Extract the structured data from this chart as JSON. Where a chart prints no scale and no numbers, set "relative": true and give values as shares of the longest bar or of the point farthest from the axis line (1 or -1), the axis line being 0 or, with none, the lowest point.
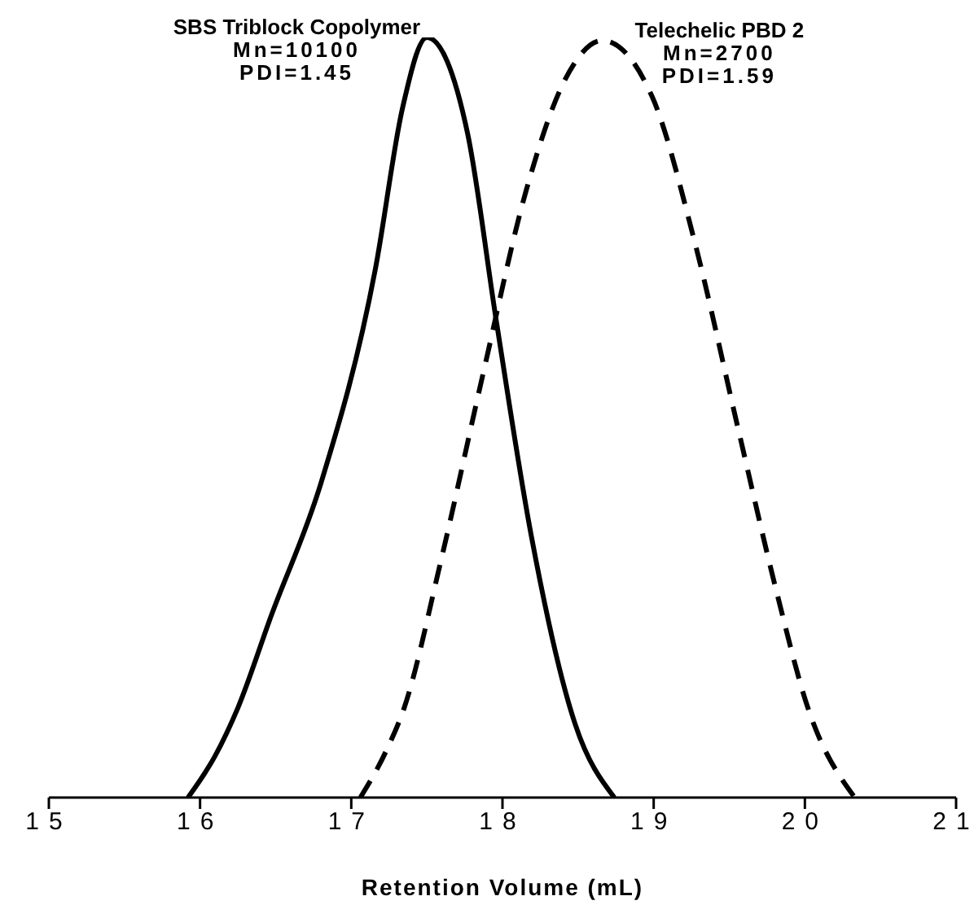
{
  "chart_data": {
    "type": "line",
    "xlabel": "Retention Volume (mL)",
    "relative": true,
    "xlim": [
      15,
      21
    ],
    "xticks": [
      15,
      16,
      17,
      18,
      19,
      20,
      21
    ],
    "marker": "none",
    "annotations": [
      "Mn=10100",
      "PDI=1.45",
      "Mn=2700",
      "PDI=1.59"
    ],
    "series": [
      {
        "name": "SBS Triblock Copolymer",
        "color": "#000000",
        "line_style": "solid",
        "x": [
          15.92,
          16.1,
          16.25,
          16.47,
          16.8,
          17.16,
          17.34,
          17.5,
          17.77,
          17.96,
          18.19,
          18.48,
          18.74
        ],
        "values": [
          0,
          0.055,
          0.118,
          0.239,
          0.414,
          0.696,
          0.908,
          1,
          0.873,
          0.626,
          0.345,
          0.097,
          0
        ]
      },
      {
        "name": "Telechelic PBD 2",
        "color": "#000000",
        "line_style": "dashed",
        "x": [
          17.06,
          17.23,
          17.35,
          17.59,
          17.87,
          18.16,
          18.41,
          18.66,
          18.99,
          19.27,
          19.56,
          19.81,
          20.02,
          20.33
        ],
        "values": [
          0,
          0.061,
          0.118,
          0.309,
          0.556,
          0.801,
          0.943,
          0.996,
          0.922,
          0.732,
          0.484,
          0.273,
          0.118,
          0
        ]
      }
    ]
  }
}
